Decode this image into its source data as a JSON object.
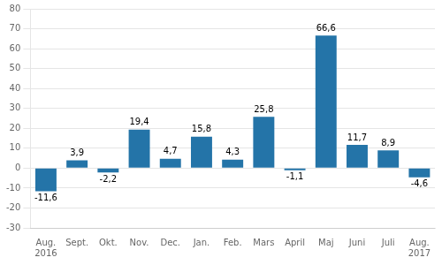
{
  "chart_data": {
    "type": "bar",
    "categories": [
      "Aug.\n2016",
      "Sept.",
      "Okt.",
      "Nov.",
      "Dec.",
      "Jan.",
      "Feb.",
      "Mars",
      "April",
      "Maj",
      "Juni",
      "Juli",
      "Aug.\n2017"
    ],
    "values": [
      -11.6,
      3.9,
      -2.2,
      19.4,
      4.7,
      15.8,
      4.3,
      25.8,
      -1.1,
      66.6,
      11.7,
      8.9,
      -4.6
    ],
    "value_labels": [
      "-11,6",
      "3,9",
      "-2,2",
      "19,4",
      "4,7",
      "15,8",
      "4,3",
      "25,8",
      "-1,1",
      "66,6",
      "11,7",
      "8,9",
      "-4,6"
    ],
    "color": "#2474a8",
    "ylim": [
      -30,
      80
    ],
    "yticks": [
      -30,
      -20,
      -10,
      0,
      10,
      20,
      30,
      40,
      50,
      60,
      70,
      80
    ],
    "grid": true,
    "data_labels": true
  }
}
